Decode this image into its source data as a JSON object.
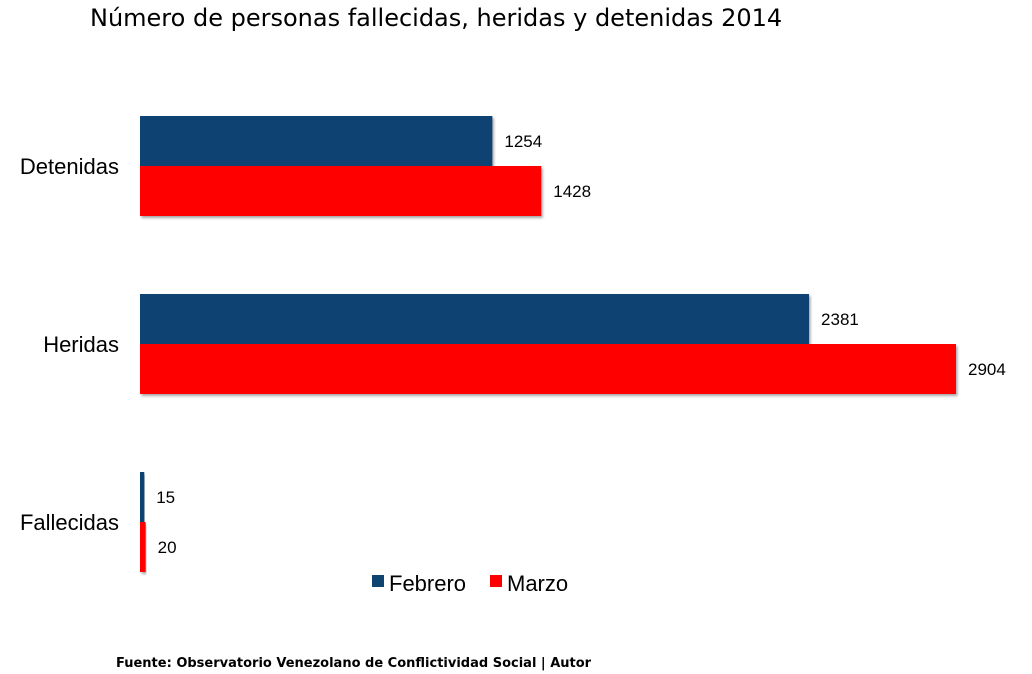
{
  "chart_data": {
    "type": "bar",
    "orientation": "horizontal",
    "title": "Número de personas fallecidas, heridas y detenidas 2014",
    "categories": [
      "Detenidas",
      "Heridas",
      "Fallecidas"
    ],
    "series": [
      {
        "name": "Febrero",
        "color": "#0f4372",
        "values": [
          1254,
          2381,
          15
        ]
      },
      {
        "name": "Marzo",
        "color": "#ff0000",
        "values": [
          1428,
          2904,
          20
        ]
      }
    ],
    "legend_position": "bottom",
    "grid": false,
    "xlim": [
      0,
      2904
    ]
  },
  "footer": {
    "source": "Fuente: Observatorio Venezolano de Conflictividad Social  |  Autor"
  }
}
